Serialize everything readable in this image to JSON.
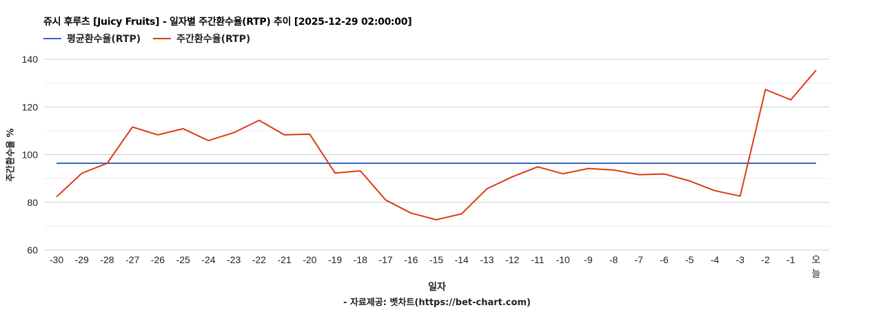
{
  "chart_data": {
    "type": "line",
    "title": "쥬시 후루츠 [Juicy Fruits] - 일자별 주간환수율(RTP) 추이 [2025-12-29 02:00:00]",
    "xlabel": "일자",
    "ylabel": "주간환수율 %",
    "source": "- 자료제공: 벳차트(https://bet-chart.com)",
    "ylim": [
      60,
      140
    ],
    "yticks": [
      60,
      80,
      100,
      120,
      140
    ],
    "grid": true,
    "legend_position": "top-left",
    "categories": [
      "-30",
      "-29",
      "-28",
      "-27",
      "-26",
      "-25",
      "-24",
      "-23",
      "-22",
      "-21",
      "-20",
      "-19",
      "-18",
      "-17",
      "-16",
      "-15",
      "-14",
      "-13",
      "-12",
      "-11",
      "-10",
      "-9",
      "-8",
      "-7",
      "-6",
      "-5",
      "-4",
      "-3",
      "-2",
      "-1",
      "오늘"
    ],
    "series": [
      {
        "name": "평균환수율(RTP)",
        "color": "#3366cc",
        "values": [
          96.4,
          96.4,
          96.4,
          96.4,
          96.4,
          96.4,
          96.4,
          96.4,
          96.4,
          96.4,
          96.4,
          96.4,
          96.4,
          96.4,
          96.4,
          96.4,
          96.4,
          96.4,
          96.4,
          96.4,
          96.4,
          96.4,
          96.4,
          96.4,
          96.4,
          96.4,
          96.4,
          96.4,
          96.4,
          96.4,
          96.4
        ]
      },
      {
        "name": "주간환수율(RTP)",
        "color": "#dc3912",
        "values": [
          82.3,
          92.2,
          96.4,
          111.6,
          108.3,
          110.9,
          105.9,
          109.2,
          114.4,
          108.3,
          108.6,
          92.3,
          93.2,
          81.0,
          75.5,
          72.7,
          75.2,
          85.7,
          90.7,
          94.9,
          92.0,
          94.2,
          93.6,
          91.6,
          91.9,
          89.0,
          84.9,
          82.6,
          127.3,
          123.0,
          135.4
        ]
      }
    ]
  },
  "header": {
    "title": "쥬시 후루츠 [Juicy Fruits] - 일자별 주간환수율(RTP) 추이 [2025-12-29 02:00:00]"
  },
  "legend": [
    {
      "label": "평균환수율(RTP)",
      "color": "#3366cc"
    },
    {
      "label": "주간환수율(RTP)",
      "color": "#dc3912"
    }
  ],
  "axes": {
    "ylabel": "주간환수율 %",
    "xlabel": "일자"
  },
  "footer": {
    "source": "- 자료제공: 벳차트(https://bet-chart.com)"
  }
}
